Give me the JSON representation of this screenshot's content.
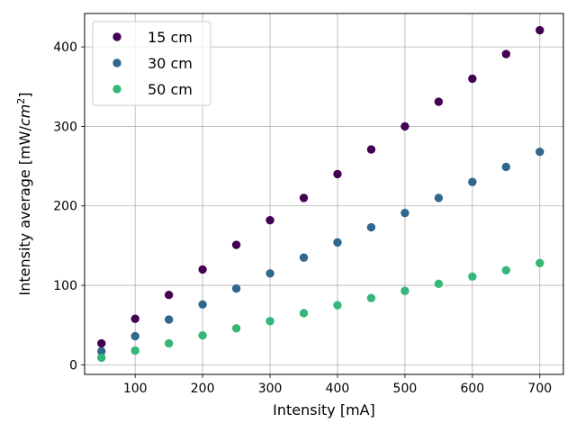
{
  "chart_data": {
    "type": "scatter",
    "xlabel": "Intensity [mA]",
    "ylabel_main": "Intensity average [mW/",
    "ylabel_unit": "cm",
    "ylabel_exp": "2",
    "ylabel_end": "]",
    "xlim": [
      25,
      735
    ],
    "ylim": [
      -12,
      442
    ],
    "x_ticks": [
      100,
      200,
      300,
      400,
      500,
      600,
      700
    ],
    "y_ticks": [
      0,
      100,
      200,
      300,
      400
    ],
    "grid": true,
    "legend_position": "top-left",
    "x": [
      50,
      100,
      150,
      200,
      250,
      300,
      350,
      400,
      450,
      500,
      550,
      600,
      650,
      700
    ],
    "series": [
      {
        "name": "15 cm",
        "color": "#440154",
        "values": [
          27,
          58,
          88,
          120,
          151,
          182,
          210,
          240,
          271,
          300,
          331,
          360,
          391,
          421
        ]
      },
      {
        "name": "30 cm",
        "color": "#31688e",
        "values": [
          17,
          36,
          57,
          76,
          96,
          115,
          135,
          154,
          173,
          191,
          210,
          230,
          249,
          268
        ]
      },
      {
        "name": "50 cm",
        "color": "#35b779",
        "values": [
          9,
          18,
          27,
          37,
          46,
          55,
          65,
          75,
          84,
          93,
          102,
          111,
          119,
          128
        ]
      }
    ]
  }
}
